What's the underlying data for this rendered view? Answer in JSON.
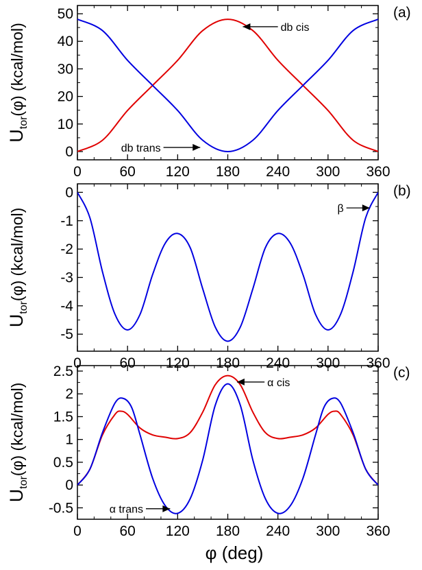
{
  "figure": {
    "xlabel": "φ  (deg)",
    "ylabel_main": "U",
    "ylabel_sub": "tor",
    "ylabel_rest": "(φ)  (kcal/mol)"
  },
  "chart_data": [
    {
      "panel": "(a)",
      "type": "line",
      "xlim": [
        0,
        360
      ],
      "ylim": [
        -3,
        53
      ],
      "xticks": [
        0,
        60,
        120,
        180,
        240,
        300,
        360
      ],
      "xtick_labels": [
        "0",
        "60",
        "120",
        "180",
        "240",
        "300",
        "360"
      ],
      "yticks": [
        0,
        10,
        20,
        30,
        40,
        50
      ],
      "ytick_labels": [
        "0",
        "10",
        "20",
        "30",
        "40",
        "50"
      ],
      "grid": false,
      "series": [
        {
          "name": "db cis",
          "color": "#e00000",
          "x": [
            0,
            30,
            60,
            90,
            120,
            150,
            180,
            210,
            240,
            270,
            300,
            330,
            360
          ],
          "y": [
            0.0,
            4.1,
            14.9,
            24.0,
            33.1,
            43.9,
            48.0,
            43.9,
            33.1,
            24.0,
            14.9,
            4.1,
            0.0
          ]
        },
        {
          "name": "db trans",
          "color": "#0000e0",
          "x": [
            0,
            30,
            60,
            90,
            120,
            150,
            180,
            210,
            240,
            270,
            300,
            330,
            360
          ],
          "y": [
            48.0,
            43.9,
            33.1,
            24.0,
            14.9,
            4.1,
            0.0,
            4.1,
            14.9,
            24.0,
            33.1,
            43.9,
            48.0
          ]
        }
      ],
      "annotations": [
        {
          "text": "db cis",
          "x": 240,
          "y": 45.3,
          "arrow_to": [
            198,
            45.3
          ],
          "anchor": "start"
        },
        {
          "text": "db trans",
          "x": 103,
          "y": 1.5,
          "arrow_to": [
            147,
            1.5
          ],
          "anchor": "end"
        }
      ]
    },
    {
      "panel": "(b)",
      "type": "line",
      "xlim": [
        0,
        360
      ],
      "ylim": [
        -5.6,
        0.3
      ],
      "xticks": [
        0,
        60,
        120,
        180,
        240,
        300,
        360
      ],
      "xtick_labels": [
        "0",
        "60",
        "120",
        "180",
        "240",
        "300",
        "360"
      ],
      "yticks": [
        0,
        -1,
        -2,
        -3,
        -4,
        -5
      ],
      "ytick_labels": [
        "0",
        "-1",
        "-2",
        "-3",
        "-4",
        "-5"
      ],
      "grid": false,
      "series": [
        {
          "name": "β",
          "color": "#0000e0",
          "x": [
            0,
            15,
            30,
            45,
            60,
            75,
            90,
            105,
            120,
            135,
            150,
            165,
            180,
            195,
            210,
            225,
            240,
            255,
            270,
            285,
            300,
            315,
            330,
            345,
            360
          ],
          "y": [
            0.0,
            -0.9,
            -2.8,
            -4.3,
            -4.85,
            -4.3,
            -2.9,
            -1.8,
            -1.45,
            -1.95,
            -3.4,
            -4.75,
            -5.25,
            -4.75,
            -3.4,
            -1.95,
            -1.45,
            -1.8,
            -2.9,
            -4.3,
            -4.85,
            -4.3,
            -2.8,
            -0.9,
            0.0
          ]
        }
      ],
      "annotations": [
        {
          "text": "β",
          "x": 322,
          "y": -0.55,
          "arrow_to": [
            350,
            -0.55
          ],
          "anchor": "end"
        }
      ]
    },
    {
      "panel": "(c)",
      "type": "line",
      "xlim": [
        0,
        360
      ],
      "ylim": [
        -0.75,
        2.62
      ],
      "xticks": [
        0,
        60,
        120,
        180,
        240,
        300,
        360
      ],
      "xtick_labels": [
        "0",
        "60",
        "120",
        "180",
        "240",
        "300",
        "360"
      ],
      "yticks": [
        -0.5,
        0,
        0.5,
        1,
        1.5,
        2,
        2.5
      ],
      "ytick_labels": [
        "-0.5",
        "0",
        "0.5",
        "1",
        "1.5",
        "2",
        "2.5"
      ],
      "grid": false,
      "series": [
        {
          "name": "α cis",
          "color": "#e00000",
          "x": [
            0,
            15,
            30,
            45,
            52,
            60,
            75,
            90,
            105,
            120,
            135,
            150,
            165,
            180,
            195,
            210,
            225,
            240,
            255,
            270,
            285,
            300,
            308,
            315,
            330,
            345,
            360
          ],
          "y": [
            0.0,
            0.35,
            1.1,
            1.55,
            1.62,
            1.55,
            1.25,
            1.1,
            1.05,
            1.02,
            1.15,
            1.6,
            2.2,
            2.4,
            2.2,
            1.6,
            1.15,
            1.02,
            1.05,
            1.1,
            1.25,
            1.55,
            1.62,
            1.55,
            1.1,
            0.35,
            0.0
          ]
        },
        {
          "name": "α trans",
          "color": "#0000e0",
          "x": [
            0,
            15,
            30,
            45,
            55,
            65,
            75,
            90,
            105,
            120,
            135,
            150,
            165,
            180,
            195,
            210,
            225,
            240,
            255,
            270,
            285,
            295,
            305,
            315,
            330,
            345,
            360
          ],
          "y": [
            0.0,
            0.35,
            1.15,
            1.8,
            1.9,
            1.7,
            1.1,
            0.15,
            -0.45,
            -0.62,
            -0.3,
            0.55,
            1.75,
            2.22,
            1.75,
            0.55,
            -0.3,
            -0.62,
            -0.45,
            0.15,
            1.1,
            1.7,
            1.9,
            1.8,
            1.15,
            0.35,
            0.0
          ]
        }
      ],
      "annotations": [
        {
          "text": "α cis",
          "x": 224,
          "y": 2.26,
          "arrow_to": [
            191,
            2.26
          ],
          "anchor": "start"
        },
        {
          "text": "α trans",
          "x": 82,
          "y": -0.52,
          "arrow_to": [
            111,
            -0.52
          ],
          "anchor": "end"
        }
      ]
    }
  ]
}
